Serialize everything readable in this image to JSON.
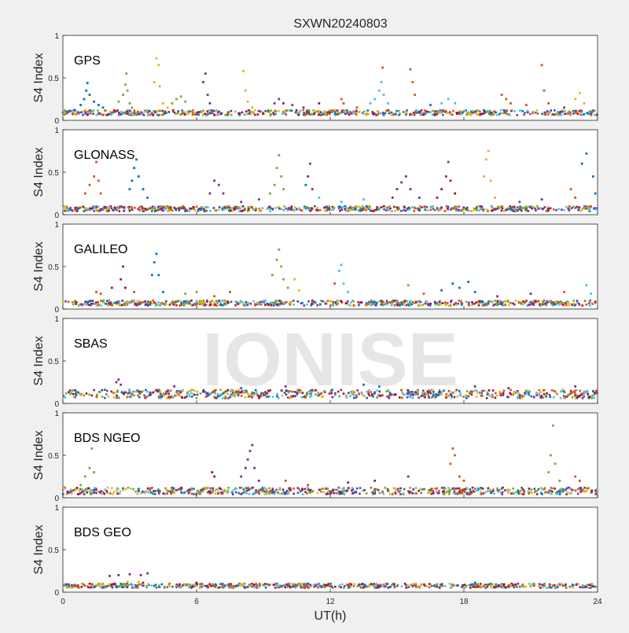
{
  "chart_data": {
    "type": "scatter",
    "title": "SXWN20240803",
    "xlabel": "UT(h)",
    "ylabel": "S4 Index",
    "xlim": [
      0,
      24
    ],
    "ylim": [
      0,
      1
    ],
    "xticks": [
      0,
      6,
      12,
      18,
      24
    ],
    "yticks": [
      0,
      0.5,
      1
    ],
    "ytick_labels": [
      "0",
      "0.5",
      "1"
    ],
    "grid": false,
    "watermark": "IONISE",
    "series_colors": [
      "#0072bd",
      "#d95319",
      "#edb120",
      "#7e2f8e",
      "#77ac30",
      "#4dbeee",
      "#a2142f"
    ],
    "panels": [
      {
        "label": "GPS",
        "points": [
          [
            0.2,
            0.1,
            0
          ],
          [
            0.5,
            0.12,
            0
          ],
          [
            0.8,
            0.18,
            0
          ],
          [
            0.95,
            0.25,
            0
          ],
          [
            1.05,
            0.35,
            0
          ],
          [
            1.1,
            0.44,
            0
          ],
          [
            1.2,
            0.3,
            0
          ],
          [
            1.4,
            0.22,
            0
          ],
          [
            1.6,
            0.18,
            0
          ],
          [
            1.8,
            0.15,
            0
          ],
          [
            2.5,
            0.22,
            4
          ],
          [
            2.7,
            0.3,
            4
          ],
          [
            2.8,
            0.42,
            4
          ],
          [
            2.85,
            0.55,
            4
          ],
          [
            2.9,
            0.35,
            4
          ],
          [
            3.0,
            0.2,
            4
          ],
          [
            3.1,
            0.15,
            4
          ],
          [
            4.1,
            0.45,
            2
          ],
          [
            4.2,
            0.73,
            2
          ],
          [
            4.3,
            0.65,
            2
          ],
          [
            4.35,
            0.4,
            2
          ],
          [
            4.5,
            0.2,
            2
          ],
          [
            4.7,
            0.15,
            2
          ],
          [
            4.9,
            0.2,
            4
          ],
          [
            5.1,
            0.25,
            4
          ],
          [
            5.3,
            0.28,
            4
          ],
          [
            5.5,
            0.22,
            4
          ],
          [
            6.3,
            0.45,
            3
          ],
          [
            6.4,
            0.55,
            3
          ],
          [
            6.5,
            0.3,
            3
          ],
          [
            6.6,
            0.2,
            3
          ],
          [
            8.1,
            0.58,
            2
          ],
          [
            8.2,
            0.35,
            2
          ],
          [
            8.3,
            0.22,
            2
          ],
          [
            8.5,
            0.15,
            2
          ],
          [
            9.5,
            0.2,
            3
          ],
          [
            9.7,
            0.25,
            3
          ],
          [
            9.9,
            0.2,
            3
          ],
          [
            10.3,
            0.18,
            3
          ],
          [
            10.8,
            0.15,
            3
          ],
          [
            11.5,
            0.2,
            6
          ],
          [
            12.5,
            0.25,
            1
          ],
          [
            12.6,
            0.2,
            1
          ],
          [
            13.2,
            0.15,
            1
          ],
          [
            13.8,
            0.2,
            5
          ],
          [
            14.0,
            0.25,
            5
          ],
          [
            14.2,
            0.35,
            5
          ],
          [
            14.3,
            0.45,
            5
          ],
          [
            14.35,
            0.62,
            1
          ],
          [
            14.4,
            0.3,
            5
          ],
          [
            14.6,
            0.2,
            5
          ],
          [
            15.6,
            0.6,
            1
          ],
          [
            15.7,
            0.45,
            1
          ],
          [
            15.8,
            0.3,
            1
          ],
          [
            16.5,
            0.18,
            0
          ],
          [
            17.0,
            0.2,
            5
          ],
          [
            17.3,
            0.25,
            5
          ],
          [
            17.6,
            0.2,
            5
          ],
          [
            19.7,
            0.3,
            1
          ],
          [
            19.9,
            0.25,
            1
          ],
          [
            20.1,
            0.2,
            1
          ],
          [
            20.8,
            0.18,
            1
          ],
          [
            21.5,
            0.65,
            1
          ],
          [
            21.6,
            0.35,
            1
          ],
          [
            21.8,
            0.2,
            1
          ],
          [
            22.5,
            0.15,
            0
          ],
          [
            23.0,
            0.25,
            2
          ],
          [
            23.2,
            0.32,
            2
          ],
          [
            23.4,
            0.2,
            2
          ]
        ],
        "baseline": [
          0.06,
          0.12
        ]
      },
      {
        "label": "GLONASS",
        "points": [
          [
            1.0,
            0.25,
            1
          ],
          [
            1.2,
            0.35,
            1
          ],
          [
            1.4,
            0.45,
            1
          ],
          [
            1.5,
            0.62,
            1
          ],
          [
            1.6,
            0.4,
            1
          ],
          [
            1.7,
            0.25,
            1
          ],
          [
            3.0,
            0.3,
            0
          ],
          [
            3.1,
            0.4,
            0
          ],
          [
            3.2,
            0.55,
            0
          ],
          [
            3.3,
            0.65,
            0
          ],
          [
            3.4,
            0.45,
            0
          ],
          [
            3.6,
            0.3,
            0
          ],
          [
            3.8,
            0.2,
            0
          ],
          [
            6.6,
            0.25,
            3
          ],
          [
            6.8,
            0.4,
            3
          ],
          [
            7.0,
            0.35,
            3
          ],
          [
            7.2,
            0.25,
            3
          ],
          [
            8.0,
            0.15,
            3
          ],
          [
            8.8,
            0.18,
            3
          ],
          [
            9.3,
            0.25,
            4
          ],
          [
            9.5,
            0.35,
            4
          ],
          [
            9.6,
            0.55,
            4
          ],
          [
            9.7,
            0.7,
            4
          ],
          [
            9.8,
            0.45,
            4
          ],
          [
            9.9,
            0.3,
            4
          ],
          [
            10.9,
            0.35,
            0
          ],
          [
            11.0,
            0.45,
            3
          ],
          [
            11.1,
            0.6,
            3
          ],
          [
            11.2,
            0.3,
            3
          ],
          [
            11.5,
            0.2,
            5
          ],
          [
            12.5,
            0.15,
            5
          ],
          [
            13.5,
            0.18,
            5
          ],
          [
            14.8,
            0.2,
            3
          ],
          [
            15.0,
            0.3,
            3
          ],
          [
            15.2,
            0.38,
            3
          ],
          [
            15.4,
            0.45,
            3
          ],
          [
            15.6,
            0.3,
            3
          ],
          [
            16.0,
            0.2,
            3
          ],
          [
            16.8,
            0.2,
            6
          ],
          [
            17.0,
            0.3,
            6
          ],
          [
            17.2,
            0.45,
            3
          ],
          [
            17.3,
            0.62,
            3
          ],
          [
            17.4,
            0.4,
            6
          ],
          [
            17.6,
            0.25,
            6
          ],
          [
            18.9,
            0.45,
            2
          ],
          [
            19.0,
            0.65,
            2
          ],
          [
            19.1,
            0.75,
            2
          ],
          [
            19.2,
            0.4,
            2
          ],
          [
            19.4,
            0.2,
            2
          ],
          [
            20.5,
            0.15,
            0
          ],
          [
            21.5,
            0.18,
            3
          ],
          [
            22.8,
            0.3,
            1
          ],
          [
            23.0,
            0.2,
            1
          ],
          [
            23.3,
            0.6,
            0
          ],
          [
            23.5,
            0.72,
            0
          ],
          [
            23.8,
            0.45,
            0
          ],
          [
            23.9,
            0.25,
            0
          ]
        ],
        "baseline": [
          0.04,
          0.1
        ]
      },
      {
        "label": "GALILEO",
        "points": [
          [
            1.5,
            0.2,
            1
          ],
          [
            1.7,
            0.18,
            1
          ],
          [
            2.2,
            0.25,
            6
          ],
          [
            2.6,
            0.35,
            6
          ],
          [
            2.7,
            0.5,
            6
          ],
          [
            2.8,
            0.25,
            6
          ],
          [
            3.2,
            0.2,
            1
          ],
          [
            4.0,
            0.4,
            0
          ],
          [
            4.1,
            0.55,
            0
          ],
          [
            4.2,
            0.65,
            0
          ],
          [
            4.3,
            0.4,
            0
          ],
          [
            4.5,
            0.2,
            0
          ],
          [
            5.5,
            0.18,
            4
          ],
          [
            6.0,
            0.2,
            4
          ],
          [
            6.8,
            0.15,
            1
          ],
          [
            7.5,
            0.2,
            1
          ],
          [
            9.4,
            0.4,
            4
          ],
          [
            9.6,
            0.58,
            4
          ],
          [
            9.7,
            0.7,
            4
          ],
          [
            9.8,
            0.5,
            4
          ],
          [
            9.9,
            0.35,
            4
          ],
          [
            10.1,
            0.25,
            4
          ],
          [
            10.4,
            0.35,
            2
          ],
          [
            10.6,
            0.22,
            2
          ],
          [
            12.2,
            0.3,
            1
          ],
          [
            12.4,
            0.45,
            5
          ],
          [
            12.5,
            0.52,
            5
          ],
          [
            12.6,
            0.3,
            5
          ],
          [
            12.8,
            0.2,
            5
          ],
          [
            15.5,
            0.28,
            4
          ],
          [
            16.2,
            0.18,
            1
          ],
          [
            17.0,
            0.22,
            0
          ],
          [
            17.5,
            0.3,
            0
          ],
          [
            17.8,
            0.25,
            0
          ],
          [
            18.2,
            0.32,
            0
          ],
          [
            18.5,
            0.2,
            0
          ],
          [
            19.5,
            0.15,
            3
          ],
          [
            21.0,
            0.18,
            3
          ],
          [
            22.5,
            0.2,
            1
          ],
          [
            23.5,
            0.28,
            5
          ],
          [
            23.7,
            0.18,
            5
          ]
        ],
        "baseline": [
          0.04,
          0.1
        ]
      },
      {
        "label": "SBAS",
        "points": [
          [
            2.4,
            0.25,
            3
          ],
          [
            2.5,
            0.28,
            3
          ],
          [
            2.6,
            0.22,
            3
          ],
          [
            5.0,
            0.2,
            3
          ],
          [
            8.0,
            0.18,
            0
          ],
          [
            10.0,
            0.2,
            3
          ],
          [
            13.5,
            0.22,
            0
          ],
          [
            14.2,
            0.2,
            0
          ],
          [
            18.5,
            0.2,
            3
          ],
          [
            20.0,
            0.18,
            3
          ],
          [
            23.0,
            0.2,
            3
          ]
        ],
        "baseline": [
          0.06,
          0.16
        ]
      },
      {
        "label": "BDS NGEO",
        "points": [
          [
            0.8,
            0.15,
            4
          ],
          [
            1.0,
            0.25,
            4
          ],
          [
            1.2,
            0.35,
            4
          ],
          [
            1.3,
            0.58,
            4
          ],
          [
            1.4,
            0.3,
            4
          ],
          [
            6.7,
            0.3,
            6
          ],
          [
            6.8,
            0.25,
            6
          ],
          [
            8.0,
            0.25,
            3
          ],
          [
            8.2,
            0.35,
            3
          ],
          [
            8.3,
            0.45,
            3
          ],
          [
            8.4,
            0.55,
            3
          ],
          [
            8.5,
            0.62,
            3
          ],
          [
            8.6,
            0.35,
            3
          ],
          [
            8.8,
            0.2,
            3
          ],
          [
            10.0,
            0.2,
            1
          ],
          [
            11.0,
            0.15,
            1
          ],
          [
            12.8,
            0.18,
            3
          ],
          [
            14.0,
            0.2,
            3
          ],
          [
            15.5,
            0.25,
            3
          ],
          [
            17.4,
            0.4,
            1
          ],
          [
            17.5,
            0.58,
            1
          ],
          [
            17.6,
            0.5,
            1
          ],
          [
            17.8,
            0.25,
            1
          ],
          [
            18.0,
            0.2,
            1
          ],
          [
            21.8,
            0.3,
            4
          ],
          [
            21.9,
            0.5,
            4
          ],
          [
            22.0,
            0.85,
            4
          ],
          [
            22.1,
            0.4,
            4
          ],
          [
            22.3,
            0.2,
            4
          ],
          [
            23.0,
            0.25,
            1
          ],
          [
            23.2,
            0.2,
            1
          ]
        ],
        "baseline": [
          0.04,
          0.12
        ]
      },
      {
        "label": "BDS GEO",
        "points": [
          [
            2.1,
            0.19,
            3
          ],
          [
            2.5,
            0.2,
            3
          ],
          [
            3.0,
            0.21,
            3
          ],
          [
            3.5,
            0.2,
            3
          ],
          [
            3.8,
            0.22,
            3
          ],
          [
            2.9,
            0.12,
            2
          ],
          [
            3.4,
            0.12,
            2
          ],
          [
            3.6,
            0.11,
            6
          ],
          [
            6.0,
            0.11,
            6
          ],
          [
            11.0,
            0.1,
            0
          ],
          [
            18.5,
            0.11,
            0
          ]
        ],
        "baseline": [
          0.05,
          0.1
        ]
      }
    ]
  }
}
